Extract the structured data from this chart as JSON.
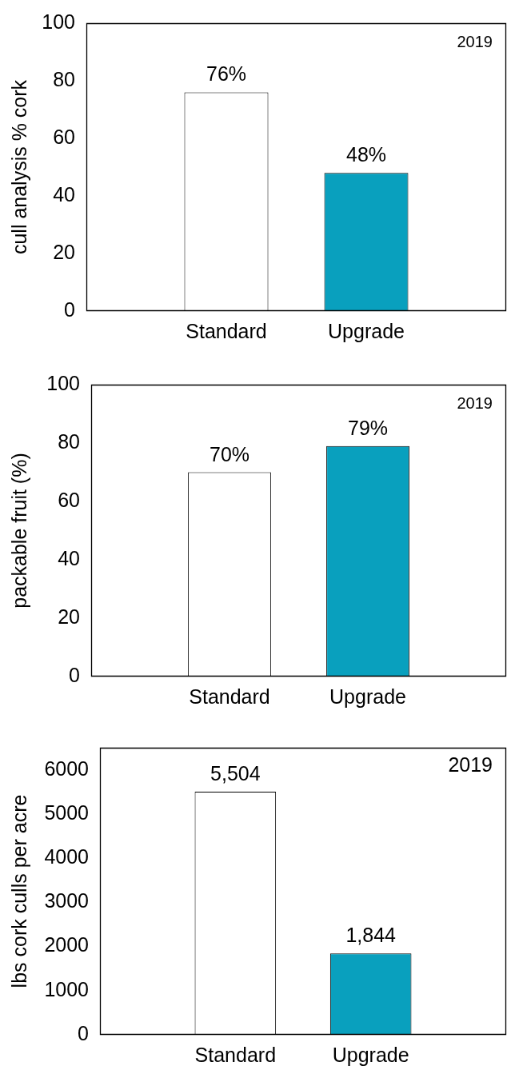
{
  "chart_data": [
    {
      "type": "bar",
      "categories": [
        "Standard",
        "Upgrade"
      ],
      "values": [
        76,
        48
      ],
      "colors": [
        "#ffffff",
        "#09a0be"
      ],
      "value_labels": [
        "76%",
        "48%"
      ],
      "ylabel": "cull analysis % cork",
      "ylim": [
        0,
        100
      ],
      "yticks": [
        0,
        20,
        40,
        60,
        80,
        100
      ],
      "annotations": [
        "2019"
      ]
    },
    {
      "type": "bar",
      "categories": [
        "Standard",
        "Upgrade"
      ],
      "values": [
        70,
        79
      ],
      "colors": [
        "#ffffff",
        "#09a0be"
      ],
      "value_labels": [
        "70%",
        "79%"
      ],
      "ylabel": "packable fruit (%)",
      "ylim": [
        0,
        100
      ],
      "yticks": [
        0,
        20,
        40,
        60,
        80,
        100
      ],
      "annotations": [
        "2019"
      ]
    },
    {
      "type": "bar",
      "categories": [
        "Standard",
        "Upgrade"
      ],
      "values": [
        5504,
        1844
      ],
      "colors": [
        "#ffffff",
        "#09a0be"
      ],
      "value_labels": [
        "5,504",
        "1,844"
      ],
      "ylabel": "lbs cork culls per acre",
      "ylim": [
        0,
        6500
      ],
      "yticks": [
        0,
        1000,
        2000,
        3000,
        4000,
        5000,
        6000
      ],
      "annotations": [
        "2019"
      ]
    }
  ]
}
